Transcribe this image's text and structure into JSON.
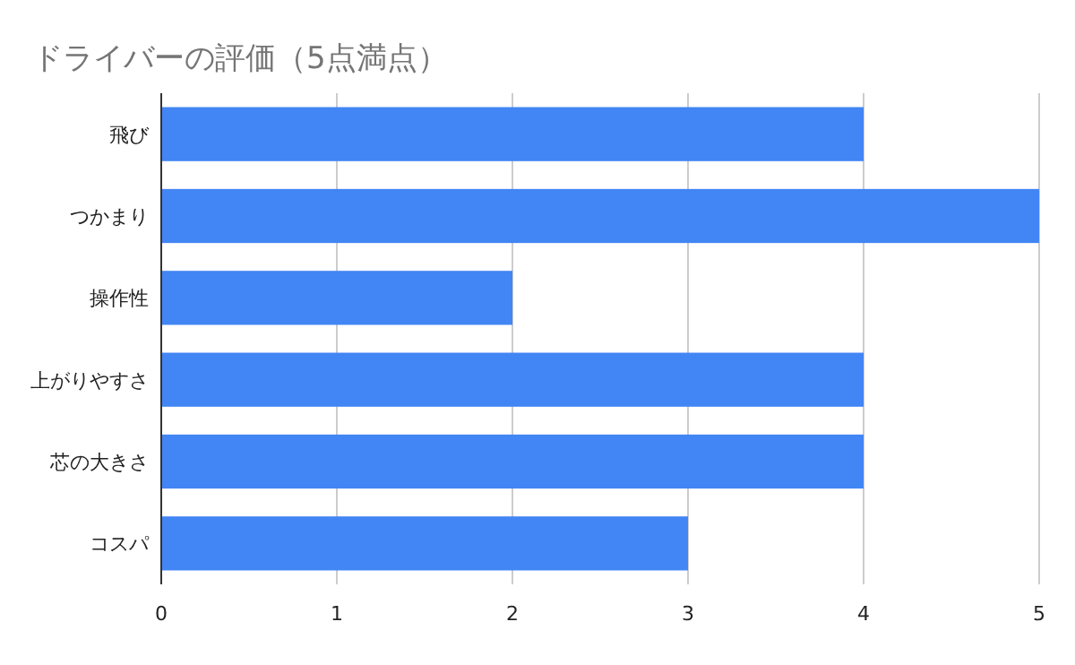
{
  "chart_data": {
    "type": "bar",
    "orientation": "horizontal",
    "title": "ドライバーの評価（5点満点）",
    "categories": [
      "飛び",
      "つかまり",
      "操作性",
      "上がりやすさ",
      "芯の大きさ",
      "コスパ"
    ],
    "values": [
      4,
      5,
      2,
      4,
      4,
      3
    ],
    "color": "#4285f4",
    "xlim": [
      0,
      5
    ],
    "xticks": [
      0,
      1,
      2,
      3,
      4,
      5
    ],
    "grid": "x"
  }
}
